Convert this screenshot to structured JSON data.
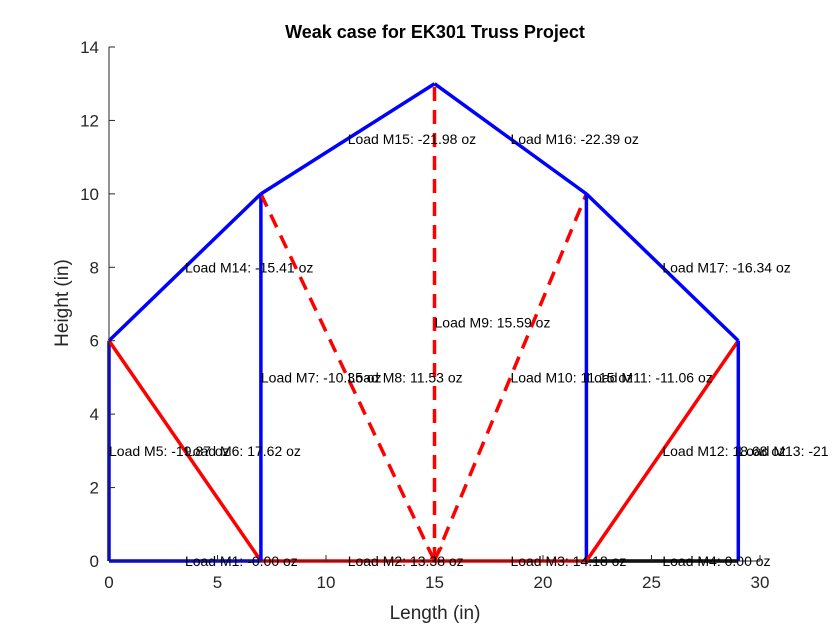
{
  "chart_data": {
    "type": "line",
    "title": "Weak case for EK301 Truss Project",
    "xlabel": "Length (in)",
    "ylabel": "Height (in)",
    "xlim": [
      0,
      30
    ],
    "ylim": [
      0,
      14
    ],
    "xticks": [
      "0",
      "5",
      "10",
      "15",
      "20",
      "25",
      "30"
    ],
    "yticks": [
      "0",
      "2",
      "4",
      "6",
      "8",
      "10",
      "12",
      "14"
    ],
    "grid": false,
    "colors": {
      "compression": "#0000ff",
      "tension": "#ff0000",
      "text": "#000000",
      "axis": "#262626"
    },
    "members": [
      {
        "name": "M1",
        "x": [
          0,
          7
        ],
        "y": [
          0,
          0
        ],
        "color": "#0000ff",
        "dashed": false,
        "label": "Load M1: -0.00 oz",
        "lx": 3.5,
        "ly": 0
      },
      {
        "name": "M2",
        "x": [
          7,
          15
        ],
        "y": [
          0,
          0
        ],
        "color": "#ff0000",
        "dashed": false,
        "label": "Load M2: 13.38 oz",
        "lx": 11,
        "ly": 0
      },
      {
        "name": "M3",
        "x": [
          15,
          22
        ],
        "y": [
          0,
          0
        ],
        "color": "#ff0000",
        "dashed": false,
        "label": "Load M3: 14.18 oz",
        "lx": 18.5,
        "ly": 0
      },
      {
        "name": "M4",
        "x": [
          22,
          29
        ],
        "y": [
          0,
          0
        ],
        "color": "#000000",
        "dashed": false,
        "label": "Load M4: 0.00 oz",
        "lx": 25.5,
        "ly": 0
      },
      {
        "name": "M5",
        "x": [
          0,
          0
        ],
        "y": [
          0,
          6
        ],
        "color": "#0000ff",
        "dashed": false,
        "label": "Load M5: -19.87 oz",
        "lx": 0,
        "ly": 3
      },
      {
        "name": "M6",
        "x": [
          0,
          7
        ],
        "y": [
          6,
          0
        ],
        "color": "#ff0000",
        "dashed": false,
        "label": "Load M6: 17.62 oz",
        "lx": 3.5,
        "ly": 3
      },
      {
        "name": "M7",
        "x": [
          7,
          7
        ],
        "y": [
          0,
          10
        ],
        "color": "#0000ff",
        "dashed": false,
        "label": "Load M7: -10.35 oz",
        "lx": 7,
        "ly": 5
      },
      {
        "name": "M8",
        "x": [
          7,
          15
        ],
        "y": [
          10,
          0
        ],
        "color": "#ff0000",
        "dashed": true,
        "label": "Load M8: 11.53 oz",
        "lx": 11,
        "ly": 5
      },
      {
        "name": "M9",
        "x": [
          15,
          15
        ],
        "y": [
          0,
          13
        ],
        "color": "#ff0000",
        "dashed": true,
        "label": "Load M9: 15.59 oz",
        "lx": 15,
        "ly": 6.5
      },
      {
        "name": "M10",
        "x": [
          15,
          22
        ],
        "y": [
          0,
          10
        ],
        "color": "#ff0000",
        "dashed": true,
        "label": "Load M10: 11.15 oz",
        "lx": 18.5,
        "ly": 5
      },
      {
        "name": "M11",
        "x": [
          22,
          22
        ],
        "y": [
          0,
          10
        ],
        "color": "#0000ff",
        "dashed": false,
        "label": "Load M11: -11.06 oz",
        "lx": 22,
        "ly": 5
      },
      {
        "name": "M12",
        "x": [
          22,
          29
        ],
        "y": [
          0,
          6
        ],
        "color": "#ff0000",
        "dashed": false,
        "label": "Load M12: 18.68 oz",
        "lx": 25.5,
        "ly": 3
      },
      {
        "name": "M13",
        "x": [
          29,
          29
        ],
        "y": [
          0,
          6
        ],
        "color": "#0000ff",
        "dashed": false,
        "label": "Load M13: -21",
        "lx": 29,
        "ly": 3
      },
      {
        "name": "M14",
        "x": [
          0,
          7
        ],
        "y": [
          6,
          10
        ],
        "color": "#0000ff",
        "dashed": false,
        "label": "Load M14: -15.41 oz",
        "lx": 3.5,
        "ly": 8
      },
      {
        "name": "M15",
        "x": [
          7,
          15
        ],
        "y": [
          10,
          13
        ],
        "color": "#0000ff",
        "dashed": false,
        "label": "Load M15: -21.98 oz",
        "lx": 11,
        "ly": 11.5
      },
      {
        "name": "M16",
        "x": [
          15,
          22
        ],
        "y": [
          13,
          10
        ],
        "color": "#0000ff",
        "dashed": false,
        "label": "Load M16: -22.39 oz",
        "lx": 18.5,
        "ly": 11.5
      },
      {
        "name": "M17",
        "x": [
          22,
          29
        ],
        "y": [
          10,
          6
        ],
        "color": "#0000ff",
        "dashed": false,
        "label": "Load M17: -16.34 oz",
        "lx": 25.5,
        "ly": 8
      }
    ]
  }
}
